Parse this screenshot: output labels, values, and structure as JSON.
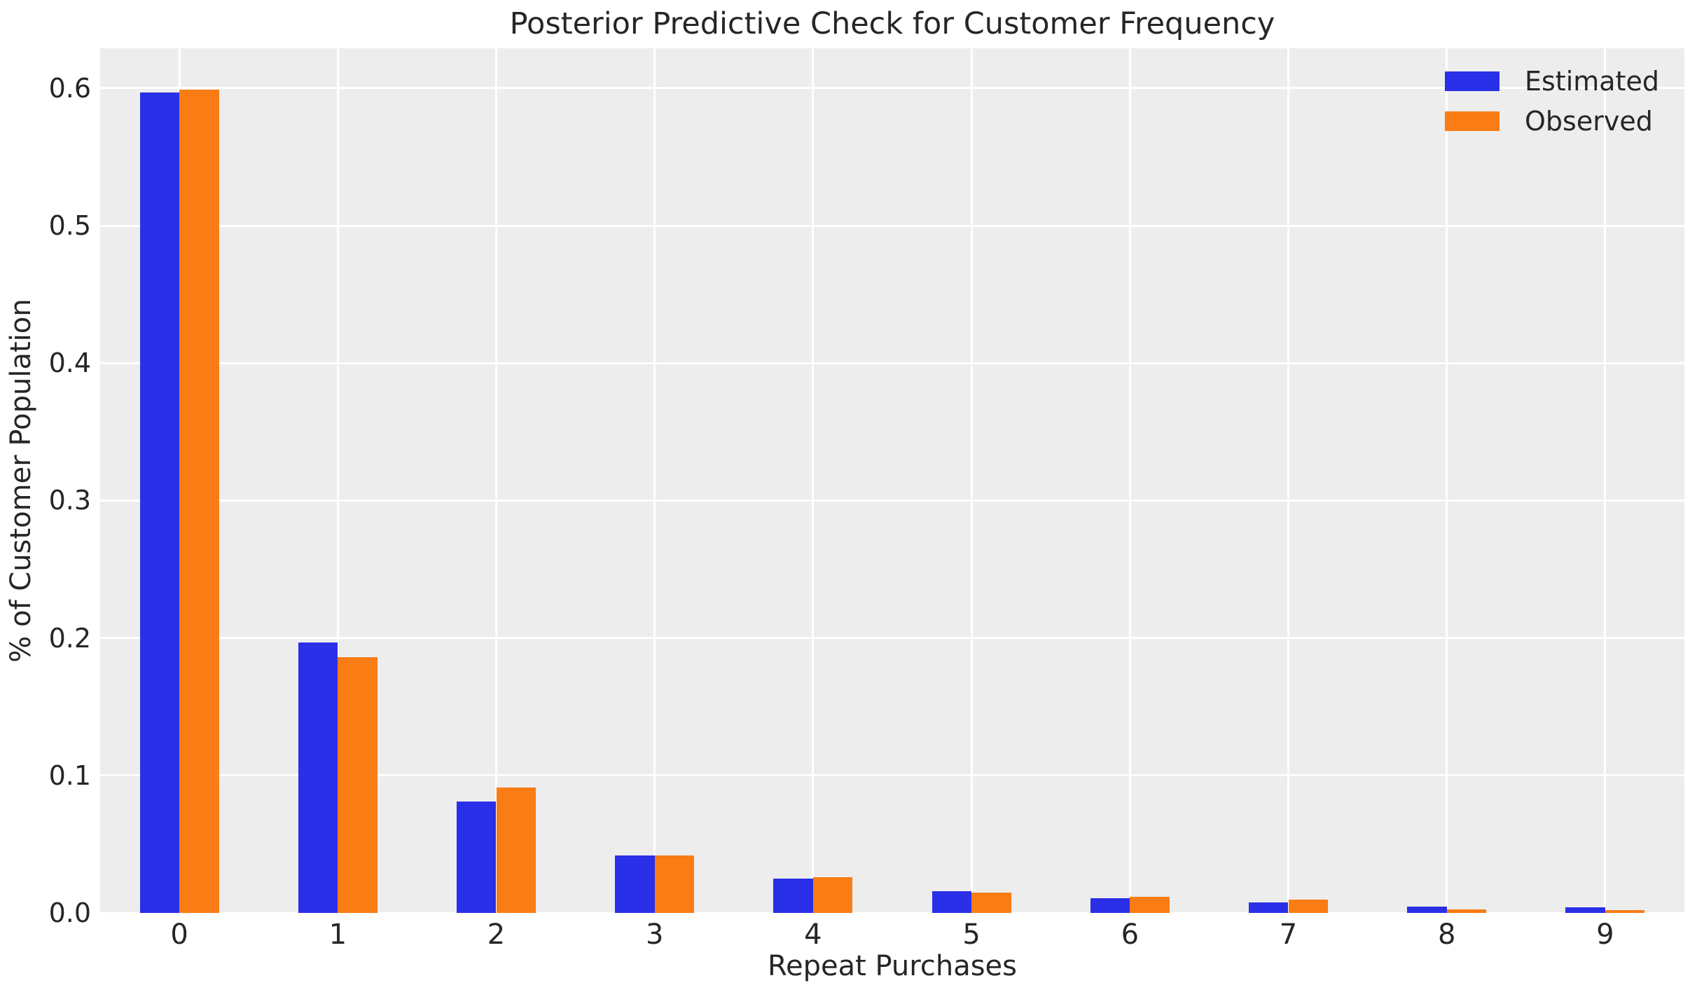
{
  "chart_data": {
    "type": "bar",
    "title": "Posterior Predictive Check for Customer Frequency",
    "xlabel": "Repeat Purchases",
    "ylabel": "% of Customer Population",
    "categories": [
      "0",
      "1",
      "2",
      "3",
      "4",
      "5",
      "6",
      "7",
      "8",
      "9"
    ],
    "series": [
      {
        "name": "Estimated",
        "color": "#2a2fe8",
        "values": [
          0.597,
          0.197,
          0.081,
          0.042,
          0.025,
          0.016,
          0.0105,
          0.0076,
          0.0047,
          0.0042
        ]
      },
      {
        "name": "Observed",
        "color": "#f97c14",
        "values": [
          0.599,
          0.186,
          0.091,
          0.042,
          0.026,
          0.015,
          0.0119,
          0.0095,
          0.0027,
          0.0019
        ]
      }
    ],
    "yticks": [
      0.0,
      0.1,
      0.2,
      0.3,
      0.4,
      0.5,
      0.6
    ],
    "ytick_labels": [
      "0.0",
      "0.1",
      "0.2",
      "0.3",
      "0.4",
      "0.5",
      "0.6"
    ],
    "ylim": [
      0,
      0.629
    ],
    "xlim": [
      -0.5,
      9.5
    ],
    "grid": true,
    "bar_group_width": 0.5,
    "legend_position": "upper right",
    "colors": {
      "plot_background": "#ededed",
      "gridline": "#ffffff",
      "text": "#262626",
      "figure_background": "#ffffff"
    }
  }
}
